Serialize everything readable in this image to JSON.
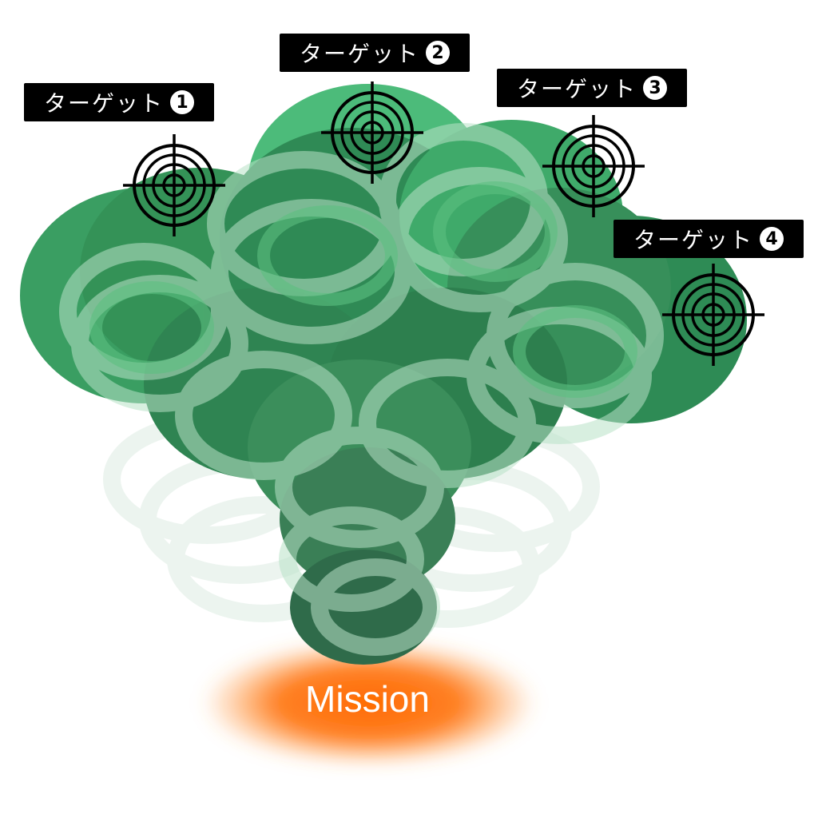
{
  "targets": [
    {
      "prefix": "ターゲット",
      "number": "1"
    },
    {
      "prefix": "ターゲット",
      "number": "2"
    },
    {
      "prefix": "ターゲット",
      "number": "3"
    },
    {
      "prefix": "ターゲット",
      "number": "4"
    }
  ],
  "mission": {
    "label": "Mission"
  },
  "colors": {
    "green_dark": "#2f8a55",
    "green_mid": "#3fae6a",
    "green_light": "#74c98e",
    "ring": "#c8e8d4",
    "mission_glow": "#ff7a1a",
    "label_bg": "#000000",
    "label_text": "#ffffff"
  },
  "icons": {
    "target": "crosshair-target-icon"
  }
}
